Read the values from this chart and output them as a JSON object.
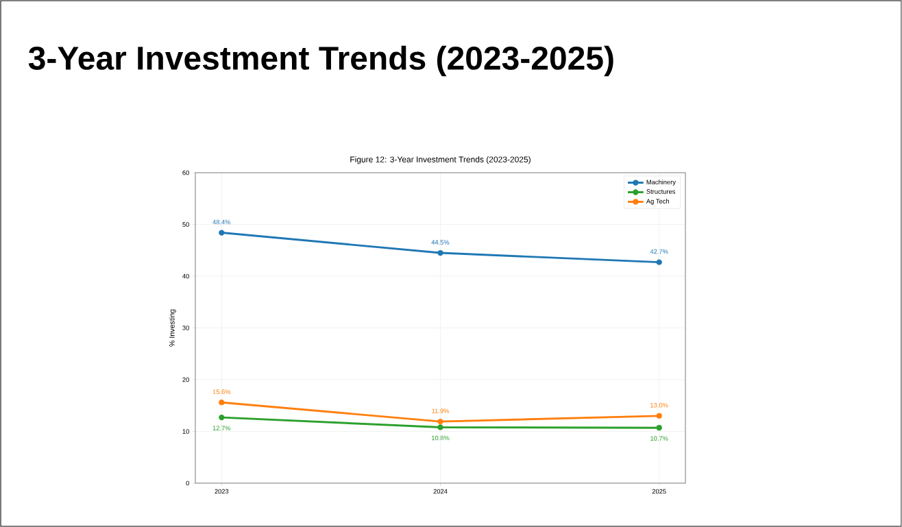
{
  "chart_data": {
    "type": "line",
    "title": "3-Year Investment Trends (2023-2025)",
    "subtitle": "Figure 12: 3-Year Investment Trends (2023-2025)",
    "ylabel": "% Investing",
    "categories": [
      "2023",
      "2024",
      "2025"
    ],
    "series": [
      {
        "name": "Machinery",
        "color": "#1f77b4",
        "values": [
          48.4,
          44.5,
          42.7
        ],
        "value_labels": [
          "48.4%",
          "44.5%",
          "42.7%"
        ]
      },
      {
        "name": "Structures",
        "color": "#2ca02c",
        "values": [
          12.7,
          10.8,
          10.7
        ],
        "value_labels": [
          "12.7%",
          "10.8%",
          "10.7%"
        ]
      },
      {
        "name": "Ag Tech",
        "color": "#ff7f0e",
        "values": [
          15.6,
          11.9,
          13.0
        ],
        "value_labels": [
          "15.6%",
          "11.9%",
          "13.0%"
        ]
      }
    ],
    "ylim": [
      0,
      60
    ],
    "yticks": [
      0,
      10,
      20,
      30,
      40,
      50,
      60
    ],
    "grid": true,
    "legend": "top right",
    "marker": "circle",
    "line_style": "solid"
  }
}
